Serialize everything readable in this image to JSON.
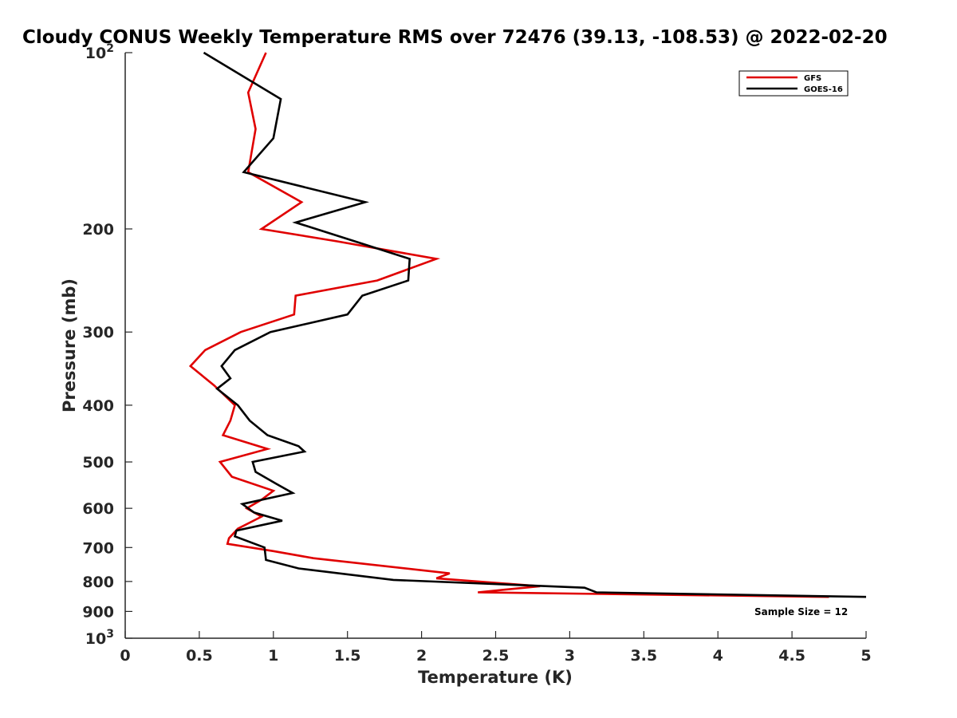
{
  "chart_data": {
    "type": "line",
    "title": "Cloudy CONUS Weekly Temperature RMS over 72476 (39.13, -108.53) @ 2022-02-20",
    "xlabel": "Temperature (K)",
    "ylabel": "Pressure (mb)",
    "xlim": [
      0,
      5
    ],
    "ylim": [
      100,
      1000
    ],
    "y_scale": "log",
    "y_reversed": true,
    "grid": false,
    "legend_position": "top-right",
    "x_ticks": [
      "0",
      "0.5",
      "1",
      "1.5",
      "2",
      "2.5",
      "3",
      "3.5",
      "4",
      "4.5",
      "5"
    ],
    "y_ticks": [
      {
        "value": 100,
        "base": "10",
        "exp": "2"
      },
      {
        "value": 200,
        "label": "200"
      },
      {
        "value": 300,
        "label": "300"
      },
      {
        "value": 400,
        "label": "400"
      },
      {
        "value": 500,
        "label": "500"
      },
      {
        "value": 600,
        "label": "600"
      },
      {
        "value": 700,
        "label": "700"
      },
      {
        "value": 800,
        "label": "800"
      },
      {
        "value": 900,
        "label": "900"
      },
      {
        "value": 1000,
        "base": "10",
        "exp": "3"
      }
    ],
    "series": [
      {
        "name": "GFS",
        "color": "#e00000",
        "points": [
          [
            0.95,
            100
          ],
          [
            0.83,
            117
          ],
          [
            0.88,
            135
          ],
          [
            0.83,
            160
          ],
          [
            1.19,
            180
          ],
          [
            0.92,
            200
          ],
          [
            1.43,
            210
          ],
          [
            2.1,
            225
          ],
          [
            1.7,
            245
          ],
          [
            1.15,
            260
          ],
          [
            1.14,
            280
          ],
          [
            0.78,
            300
          ],
          [
            0.54,
            322
          ],
          [
            0.44,
            343
          ],
          [
            0.6,
            370
          ],
          [
            0.74,
            400
          ],
          [
            0.71,
            425
          ],
          [
            0.66,
            450
          ],
          [
            0.96,
            475
          ],
          [
            0.64,
            500
          ],
          [
            0.72,
            530
          ],
          [
            1.0,
            560
          ],
          [
            0.92,
            580
          ],
          [
            0.82,
            600
          ],
          [
            0.92,
            620
          ],
          [
            0.76,
            650
          ],
          [
            0.7,
            675
          ],
          [
            0.69,
            690
          ],
          [
            1.0,
            710
          ],
          [
            1.27,
            730
          ],
          [
            2.19,
            775
          ],
          [
            2.1,
            790
          ],
          [
            2.8,
            815
          ],
          [
            2.38,
            835
          ],
          [
            4.75,
            850
          ]
        ]
      },
      {
        "name": "GOES-16",
        "color": "#000000",
        "points": [
          [
            0.53,
            100
          ],
          [
            1.05,
            120
          ],
          [
            1.0,
            140
          ],
          [
            0.8,
            160
          ],
          [
            1.62,
            180
          ],
          [
            1.15,
            195
          ],
          [
            1.55,
            210
          ],
          [
            1.92,
            225
          ],
          [
            1.91,
            245
          ],
          [
            1.6,
            260
          ],
          [
            1.5,
            280
          ],
          [
            0.98,
            300
          ],
          [
            0.74,
            322
          ],
          [
            0.65,
            343
          ],
          [
            0.71,
            360
          ],
          [
            0.62,
            375
          ],
          [
            0.76,
            400
          ],
          [
            0.84,
            425
          ],
          [
            0.96,
            450
          ],
          [
            1.17,
            470
          ],
          [
            1.21,
            480
          ],
          [
            0.86,
            500
          ],
          [
            0.88,
            520
          ],
          [
            1.02,
            545
          ],
          [
            1.13,
            565
          ],
          [
            0.79,
            590
          ],
          [
            0.87,
            610
          ],
          [
            1.06,
            630
          ],
          [
            0.75,
            655
          ],
          [
            0.74,
            670
          ],
          [
            0.94,
            700
          ],
          [
            0.95,
            735
          ],
          [
            1.17,
            760
          ],
          [
            1.81,
            795
          ],
          [
            3.1,
            820
          ],
          [
            3.18,
            835
          ],
          [
            5.0,
            850
          ]
        ]
      }
    ],
    "annotation": "Sample Size = 12"
  }
}
